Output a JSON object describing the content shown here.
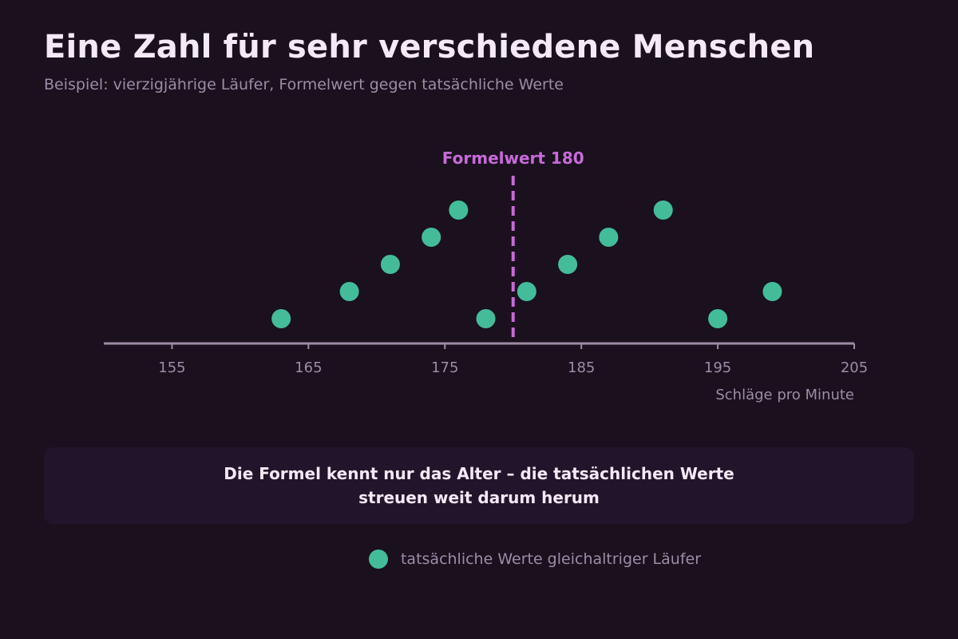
{
  "header": {
    "title": "Eine Zahl für sehr verschiedene Menschen",
    "subtitle": "Beispiel: vierzigjährige Läufer, Formelwert gegen tatsächliche Werte"
  },
  "chart_data": {
    "type": "scatter",
    "title": "Eine Zahl für sehr verschiedene Menschen",
    "subtitle": "Beispiel: vierzigjährige Läufer, Formelwert gegen tatsächliche Werte",
    "xlabel": "Schläge pro Minute",
    "ylabel": "",
    "xlim": [
      150,
      205
    ],
    "xticks": [
      155,
      165,
      175,
      185,
      195,
      205
    ],
    "reference_line": {
      "value": 180,
      "label": "Formelwert 180",
      "color": "#c86ad9",
      "style": "dashed"
    },
    "series": [
      {
        "name": "tatsächliche Werte gleichaltriger Läufer",
        "color": "#44bc9a",
        "points": [
          {
            "x": 163,
            "level": 1
          },
          {
            "x": 168,
            "level": 2
          },
          {
            "x": 171,
            "level": 3
          },
          {
            "x": 174,
            "level": 4
          },
          {
            "x": 176,
            "level": 5
          },
          {
            "x": 178,
            "level": 1
          },
          {
            "x": 181,
            "level": 2
          },
          {
            "x": 184,
            "level": 3
          },
          {
            "x": 187,
            "level": 4
          },
          {
            "x": 191,
            "level": 5
          },
          {
            "x": 195,
            "level": 1
          },
          {
            "x": 199,
            "level": 2
          }
        ]
      }
    ],
    "grid": false,
    "legend_position": "bottom-center"
  },
  "callout": {
    "text": "Die Formel kennt nur das Alter – die tatsächlichen Werte streuen weit darum herum"
  },
  "legend": {
    "label": "tatsächliche Werte gleichaltriger Läufer"
  },
  "colors": {
    "background": "#1a101e",
    "panel": "#22152b",
    "axis": "#9d8ca6",
    "point": "#44bc9a",
    "formula": "#c86ad9"
  }
}
